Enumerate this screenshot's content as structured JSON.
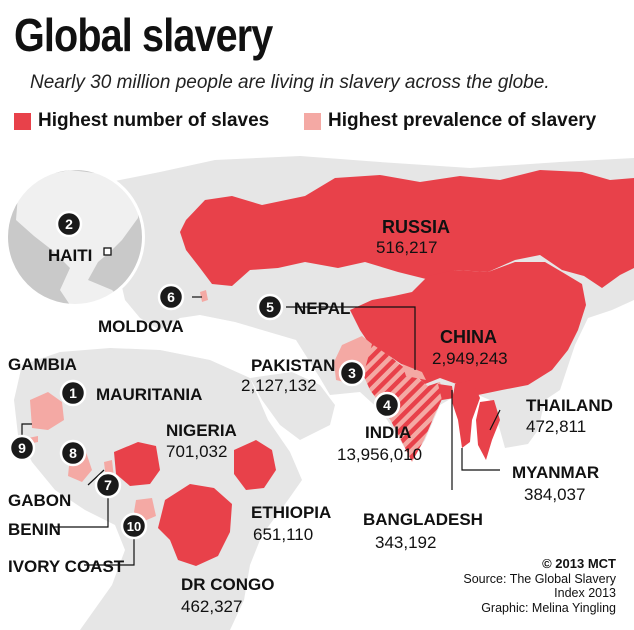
{
  "title": "Global slavery",
  "subtitle": "Nearly 30 million people are living in slavery across the globe.",
  "legend": [
    {
      "label": "Highest number of slaves",
      "color": "#e8414a"
    },
    {
      "label": "Highest prevalence of slavery",
      "color": "#f4a9a4"
    }
  ],
  "colors": {
    "land": "#e6e6e6",
    "globe": "#c9c9c9",
    "number": "#e8414a",
    "prevalence": "#f4a9a4",
    "badge": "#1a1a1a"
  },
  "inset": {
    "rank": "2",
    "label": "HAITI"
  },
  "countries": {
    "russia": {
      "name": "RUSSIA",
      "value": "516,217"
    },
    "moldova": {
      "rank": "6",
      "name": "MOLDOVA"
    },
    "nepal": {
      "rank": "5",
      "name": "NEPAL"
    },
    "china": {
      "name": "CHINA",
      "value": "2,949,243"
    },
    "pakistan": {
      "rank": "3",
      "name": "PAKISTAN",
      "value": "2,127,132"
    },
    "india": {
      "rank": "4",
      "name": "INDIA",
      "value": "13,956,010"
    },
    "thailand": {
      "name": "THAILAND",
      "value": "472,811"
    },
    "myanmar": {
      "name": "MYANMAR",
      "value": "384,037"
    },
    "bangladesh": {
      "name": "BANGLADESH",
      "value": "343,192"
    },
    "gambia": {
      "rank": "9",
      "name": "GAMBIA"
    },
    "mauritania": {
      "rank": "1",
      "name": "MAURITANIA"
    },
    "nigeria": {
      "name": "NIGERIA",
      "value": "701,032"
    },
    "gabon": {
      "rank": "8",
      "name": "GABON"
    },
    "benin": {
      "rank": "7",
      "name": "BENIN"
    },
    "ivory_coast": {
      "rank": "10",
      "name": "IVORY COAST"
    },
    "ethiopia": {
      "name": "ETHIOPIA",
      "value": "651,110"
    },
    "dr_congo": {
      "name": "DR CONGO",
      "value": "462,327"
    }
  },
  "credits": {
    "copyright": "© 2013 MCT",
    "source_1": "Source: The Global Slavery",
    "source_2": "Index 2013",
    "graphic": "Graphic: Melina Yingling"
  }
}
